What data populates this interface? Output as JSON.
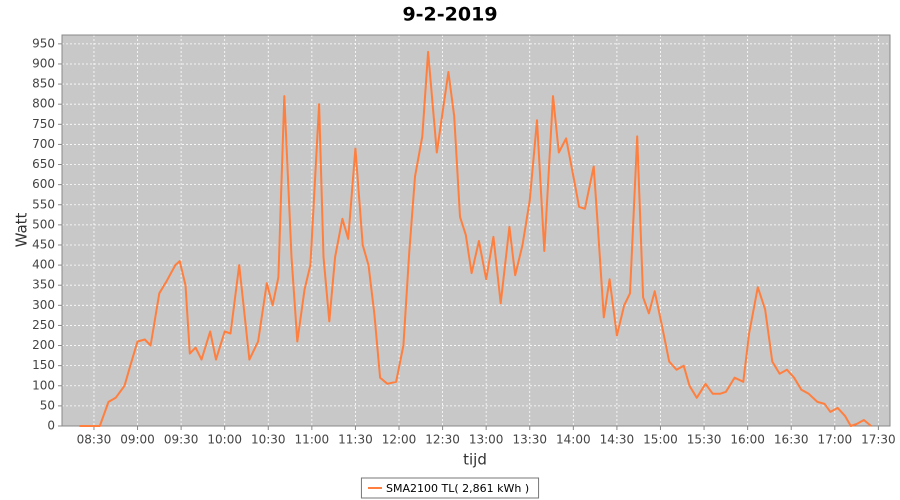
{
  "chart_data": {
    "type": "line",
    "title": "9-2-2019",
    "x_label": "tijd",
    "y_label": "Watt",
    "x": [
      "08:20",
      "08:29",
      "08:34",
      "08:40",
      "08:45",
      "08:51",
      "08:55",
      "09:00",
      "09:05",
      "09:09",
      "09:15",
      "09:20",
      "09:26",
      "09:29",
      "09:33",
      "09:36",
      "09:40",
      "09:44",
      "09:50",
      "09:54",
      "10:00",
      "10:04",
      "10:10",
      "10:17",
      "10:23",
      "10:29",
      "10:33",
      "10:37",
      "10:41",
      "10:46",
      "10:50",
      "10:55",
      "10:59",
      "11:05",
      "11:08",
      "11:12",
      "11:16",
      "11:21",
      "11:25",
      "11:30",
      "11:35",
      "11:39",
      "11:43",
      "11:47",
      "11:52",
      "11:58",
      "12:03",
      "12:07",
      "12:11",
      "12:16",
      "12:20",
      "12:26",
      "12:30",
      "12:34",
      "12:38",
      "12:42",
      "12:46",
      "12:50",
      "12:55",
      "13:00",
      "13:05",
      "13:10",
      "13:16",
      "13:20",
      "13:25",
      "13:30",
      "13:35",
      "13:40",
      "13:46",
      "13:50",
      "13:55",
      "13:59",
      "14:04",
      "14:08",
      "14:14",
      "14:17",
      "14:21",
      "14:25",
      "14:30",
      "14:35",
      "14:39",
      "14:44",
      "14:48",
      "14:52",
      "14:56",
      "15:01",
      "15:06",
      "15:11",
      "15:16",
      "15:20",
      "15:25",
      "15:31",
      "15:36",
      "15:41",
      "15:45",
      "15:51",
      "15:57",
      "16:01",
      "16:07",
      "16:12",
      "16:17",
      "16:22",
      "16:27",
      "16:32",
      "16:37",
      "16:42",
      "16:48",
      "16:53",
      "16:57",
      "17:02",
      "17:07",
      "17:11",
      "17:15",
      "17:20",
      "17:25"
    ],
    "series": [
      {
        "name": "SMA2100 TL( 2,861 kWh )",
        "color": "#ff7f3f",
        "values": [
          0,
          0,
          0,
          60,
          70,
          100,
          150,
          210,
          215,
          200,
          330,
          360,
          400,
          410,
          350,
          180,
          195,
          165,
          235,
          165,
          235,
          230,
          400,
          165,
          210,
          355,
          300,
          370,
          820,
          420,
          210,
          340,
          400,
          800,
          420,
          260,
          420,
          515,
          465,
          690,
          450,
          400,
          280,
          120,
          105,
          110,
          200,
          430,
          620,
          720,
          930,
          680,
          780,
          880,
          770,
          520,
          475,
          380,
          460,
          365,
          470,
          305,
          495,
          375,
          450,
          560,
          760,
          435,
          820,
          680,
          715,
          640,
          545,
          540,
          645,
          490,
          270,
          365,
          225,
          300,
          330,
          720,
          320,
          280,
          335,
          250,
          160,
          140,
          150,
          100,
          70,
          105,
          80,
          80,
          85,
          120,
          110,
          230,
          345,
          290,
          160,
          130,
          140,
          120,
          90,
          80,
          60,
          55,
          35,
          45,
          25,
          0,
          5,
          15,
          0
        ]
      }
    ],
    "xlim": [
      "08:08",
      "17:38"
    ],
    "xticks": [
      "08:30",
      "09:00",
      "09:30",
      "10:00",
      "10:30",
      "11:00",
      "11:30",
      "12:00",
      "12:30",
      "13:00",
      "13:30",
      "14:00",
      "14:30",
      "15:00",
      "15:30",
      "16:00",
      "16:30",
      "17:00",
      "17:30"
    ],
    "ylim": [
      0,
      972
    ],
    "yticks": [
      0,
      50,
      100,
      150,
      200,
      250,
      300,
      350,
      400,
      450,
      500,
      550,
      600,
      650,
      700,
      750,
      800,
      850,
      900,
      950
    ],
    "grid": true,
    "legend": "bottom"
  }
}
